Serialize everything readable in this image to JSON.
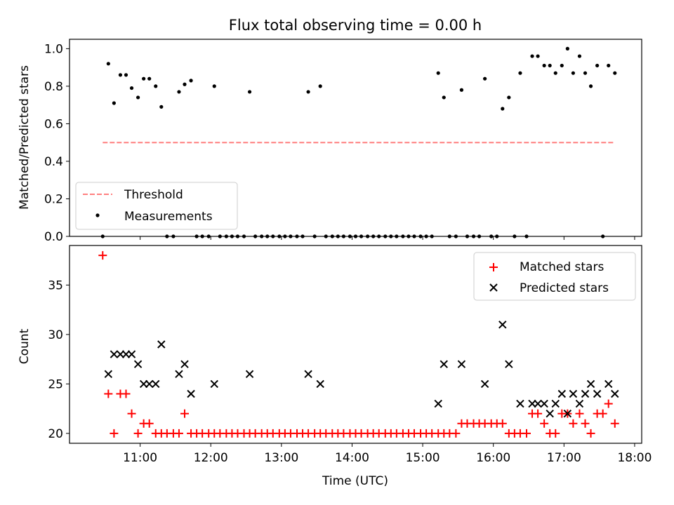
{
  "chart_data": [
    {
      "type": "scatter",
      "title": "Flux total observing time = 0.00 h",
      "xlabel": "",
      "ylabel": "Matched/Predicted stars",
      "xlim": [
        10.0,
        18.1
      ],
      "ylim": [
        0.0,
        1.05
      ],
      "yticks": [
        0.0,
        0.2,
        0.4,
        0.6,
        0.8,
        1.0
      ],
      "yticklabels": [
        "0.0",
        "0.2",
        "0.4",
        "0.6",
        "0.8",
        "1.0"
      ],
      "legend": {
        "position": "lower-left",
        "entries": [
          {
            "label": "Threshold",
            "marker": "dashed-line",
            "color": "#ff7f7f"
          },
          {
            "label": "Measurements",
            "marker": "dot",
            "color": "#000000"
          }
        ]
      },
      "series": [
        {
          "name": "Threshold",
          "kind": "line",
          "color": "#ff7f7f",
          "x": [
            10.47,
            17.72
          ],
          "y": [
            0.5,
            0.5
          ]
        },
        {
          "name": "Measurements",
          "kind": "scatter",
          "color": "#000000",
          "x": [
            10.47,
            10.55,
            10.63,
            10.72,
            10.8,
            10.88,
            10.97,
            11.05,
            11.13,
            11.22,
            11.3,
            11.38,
            11.47,
            11.55,
            11.63,
            11.72,
            11.8,
            11.88,
            11.97,
            12.05,
            12.13,
            12.22,
            12.3,
            12.38,
            12.47,
            12.55,
            12.63,
            12.72,
            12.8,
            12.88,
            12.97,
            13.05,
            13.13,
            13.22,
            13.3,
            13.38,
            13.47,
            13.55,
            13.63,
            13.72,
            13.8,
            13.88,
            13.97,
            14.05,
            14.13,
            14.22,
            14.3,
            14.38,
            14.47,
            14.55,
            14.63,
            14.72,
            14.8,
            14.88,
            14.97,
            15.05,
            15.13,
            15.22,
            15.3,
            15.38,
            15.47,
            15.55,
            15.63,
            15.72,
            15.8,
            15.88,
            15.97,
            16.05,
            16.13,
            16.22,
            16.3,
            16.38,
            16.47,
            16.55,
            16.63,
            16.72,
            16.8,
            16.88,
            16.97,
            17.05,
            17.13,
            17.22,
            17.3,
            17.38,
            17.47,
            17.55,
            17.63,
            17.72
          ],
          "y": [
            0.0,
            0.92,
            0.71,
            0.86,
            0.86,
            0.79,
            0.74,
            0.84,
            0.84,
            0.8,
            0.69,
            0.0,
            0.0,
            0.77,
            0.81,
            0.83,
            0.0,
            0.0,
            0.0,
            0.8,
            0.0,
            0.0,
            0.0,
            0.0,
            0.0,
            0.77,
            0.0,
            0.0,
            0.0,
            0.0,
            0.0,
            0.0,
            0.0,
            0.0,
            0.0,
            0.77,
            0.0,
            0.8,
            0.0,
            0.0,
            0.0,
            0.0,
            0.0,
            0.0,
            0.0,
            0.0,
            0.0,
            0.0,
            0.0,
            0.0,
            0.0,
            0.0,
            0.0,
            0.0,
            0.0,
            0.0,
            0.0,
            0.87,
            0.74,
            0.0,
            0.0,
            0.78,
            0.0,
            0.0,
            0.0,
            0.84,
            0.0,
            0.0,
            0.68,
            0.74,
            0.0,
            0.87,
            0.0,
            0.96,
            0.96,
            0.91,
            0.91,
            0.87,
            0.91,
            1.0,
            0.87,
            0.96,
            0.87,
            0.8,
            0.91,
            0.0,
            0.91,
            0.87
          ]
        }
      ]
    },
    {
      "type": "scatter",
      "title": "",
      "xlabel": "Time (UTC)",
      "ylabel": "Count",
      "xlim": [
        10.0,
        18.1
      ],
      "ylim": [
        19.0,
        39.0
      ],
      "xticks": [
        11,
        12,
        13,
        14,
        15,
        16,
        17,
        18
      ],
      "xticklabels": [
        "11:00",
        "12:00",
        "13:00",
        "14:00",
        "15:00",
        "16:00",
        "17:00",
        "18:00"
      ],
      "yticks": [
        20,
        25,
        30,
        35
      ],
      "yticklabels": [
        "20",
        "25",
        "30",
        "35"
      ],
      "legend": {
        "position": "upper-right",
        "entries": [
          {
            "label": "Matched stars",
            "marker": "plus",
            "color": "#ff0000"
          },
          {
            "label": "Predicted stars",
            "marker": "x",
            "color": "#000000"
          }
        ]
      },
      "series": [
        {
          "name": "Matched stars",
          "kind": "scatter",
          "marker": "plus",
          "color": "#ff0000",
          "x": [
            10.47,
            10.55,
            10.63,
            10.72,
            10.8,
            10.88,
            10.97,
            11.05,
            11.13,
            11.22,
            11.3,
            11.38,
            11.47,
            11.55,
            11.63,
            11.72,
            11.8,
            11.88,
            11.97,
            12.05,
            12.13,
            12.22,
            12.3,
            12.38,
            12.47,
            12.55,
            12.63,
            12.72,
            12.8,
            12.88,
            12.97,
            13.05,
            13.13,
            13.22,
            13.3,
            13.38,
            13.47,
            13.55,
            13.63,
            13.72,
            13.8,
            13.88,
            13.97,
            14.05,
            14.13,
            14.22,
            14.3,
            14.38,
            14.47,
            14.55,
            14.63,
            14.72,
            14.8,
            14.88,
            14.97,
            15.05,
            15.13,
            15.22,
            15.3,
            15.38,
            15.47,
            15.55,
            15.63,
            15.72,
            15.8,
            15.88,
            15.97,
            16.05,
            16.13,
            16.22,
            16.3,
            16.38,
            16.47,
            16.55,
            16.63,
            16.72,
            16.8,
            16.88,
            16.97,
            17.05,
            17.13,
            17.22,
            17.3,
            17.38,
            17.47,
            17.55,
            17.63,
            17.72
          ],
          "y": [
            38,
            24,
            20,
            24,
            24,
            22,
            20,
            21,
            21,
            20,
            20,
            20,
            20,
            20,
            22,
            20,
            20,
            20,
            20,
            20,
            20,
            20,
            20,
            20,
            20,
            20,
            20,
            20,
            20,
            20,
            20,
            20,
            20,
            20,
            20,
            20,
            20,
            20,
            20,
            20,
            20,
            20,
            20,
            20,
            20,
            20,
            20,
            20,
            20,
            20,
            20,
            20,
            20,
            20,
            20,
            20,
            20,
            20,
            20,
            20,
            20,
            21,
            21,
            21,
            21,
            21,
            21,
            21,
            21,
            20,
            20,
            20,
            20,
            22,
            22,
            21,
            20,
            20,
            22,
            22,
            21,
            22,
            21,
            20,
            22,
            22,
            23,
            21
          ]
        },
        {
          "name": "Predicted stars",
          "kind": "scatter",
          "marker": "x",
          "color": "#000000",
          "x": [
            10.55,
            10.63,
            10.72,
            10.8,
            10.88,
            10.97,
            11.05,
            11.13,
            11.22,
            11.3,
            11.55,
            11.63,
            11.72,
            12.05,
            12.55,
            13.38,
            13.55,
            15.22,
            15.3,
            15.55,
            15.88,
            16.13,
            16.22,
            16.38,
            16.55,
            16.63,
            16.72,
            16.8,
            16.88,
            16.97,
            17.05,
            17.13,
            17.22,
            17.3,
            17.38,
            17.47,
            17.63,
            17.72
          ],
          "y": [
            26,
            28,
            28,
            28,
            28,
            27,
            25,
            25,
            25,
            29,
            26,
            27,
            24,
            25,
            26,
            26,
            25,
            23,
            27,
            27,
            25,
            31,
            27,
            23,
            23,
            23,
            23,
            22,
            23,
            24,
            22,
            24,
            23,
            24,
            25,
            24,
            25,
            24
          ]
        }
      ]
    }
  ]
}
